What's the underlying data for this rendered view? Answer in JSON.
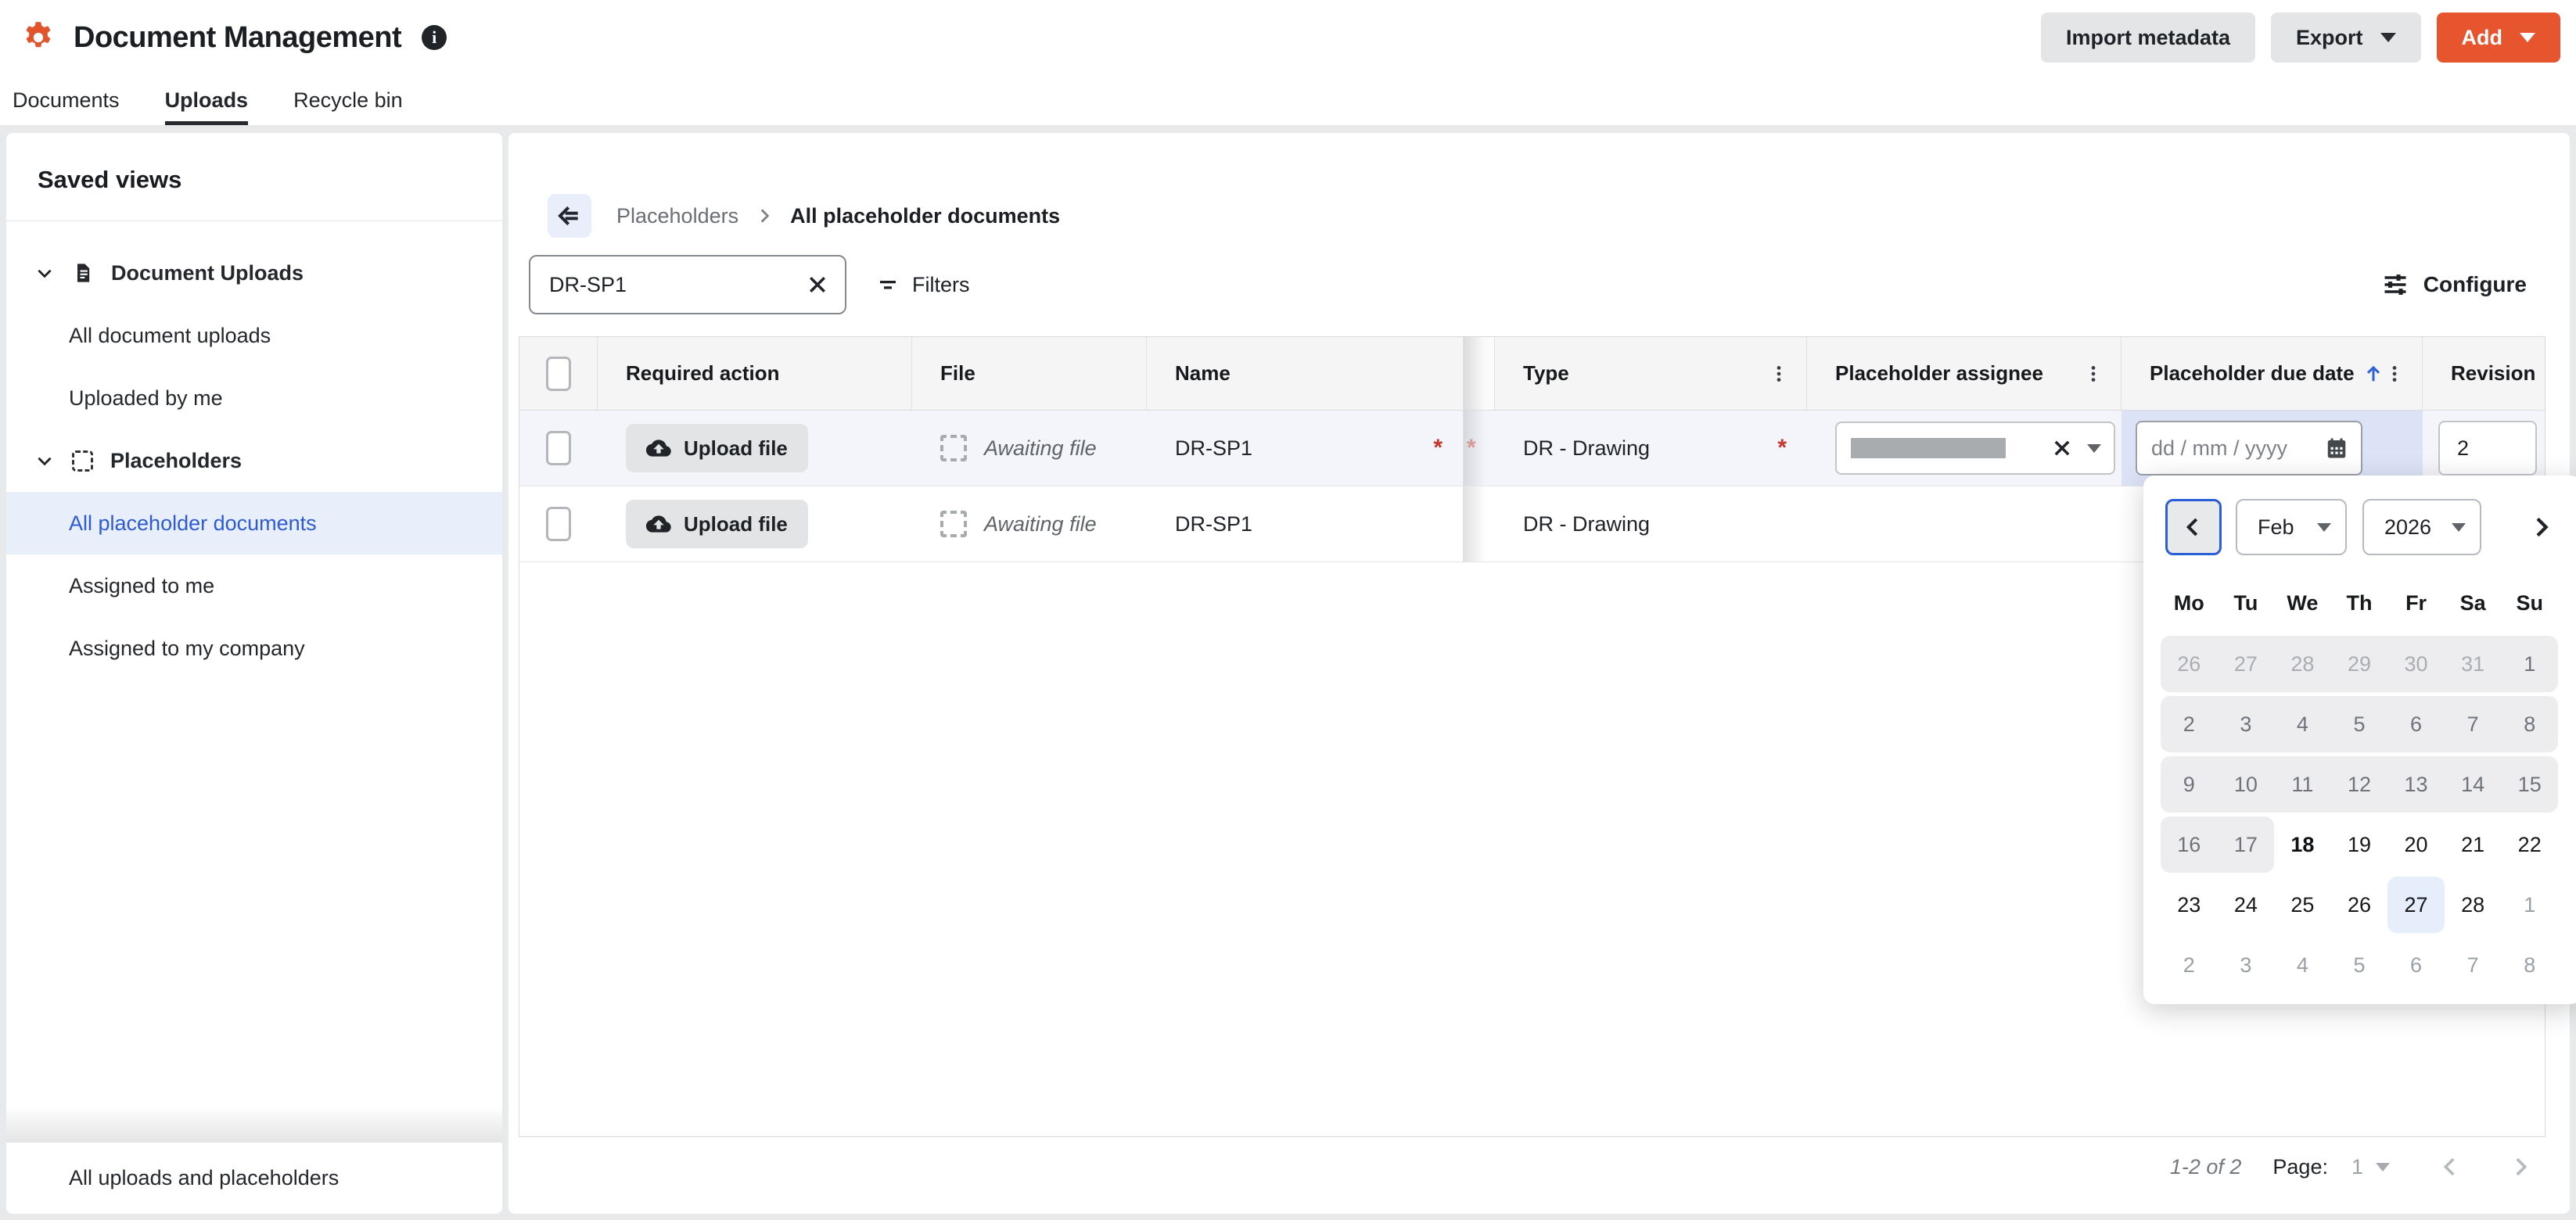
{
  "header": {
    "title": "Document Management",
    "buttons": {
      "import": "Import metadata",
      "export": "Export",
      "add": "Add"
    }
  },
  "tabs": [
    {
      "label": "Documents",
      "active": false
    },
    {
      "label": "Uploads",
      "active": true
    },
    {
      "label": "Recycle bin",
      "active": false
    }
  ],
  "sidebar": {
    "heading": "Saved views",
    "groups": [
      {
        "label": "Document Uploads",
        "icon": "document-icon",
        "children": [
          "All document uploads",
          "Uploaded by me"
        ]
      },
      {
        "label": "Placeholders",
        "icon": "placeholder-icon",
        "children": [
          "All placeholder documents",
          "Assigned to me",
          "Assigned to my company"
        ],
        "selected_child": "All placeholder documents"
      }
    ],
    "bottom_item": "All uploads and placeholders"
  },
  "breadcrumb": {
    "parent": "Placeholders",
    "current": "All placeholder documents"
  },
  "toolbar": {
    "search_value": "DR-SP1",
    "filters_label": "Filters",
    "configure_label": "Configure"
  },
  "table": {
    "columns": {
      "required_action": "Required action",
      "file": "File",
      "name": "Name",
      "type": "Type",
      "assignee": "Placeholder assignee",
      "due_date": "Placeholder due date",
      "revision": "Revision"
    },
    "sorted_column": "Placeholder due date",
    "sort_direction": "ascending",
    "rows": [
      {
        "action": "Upload file",
        "file_status": "Awaiting file",
        "name": "DR-SP1",
        "required_indicator": "*",
        "overflow_marker": "*",
        "type": "DR - Drawing",
        "type_required_indicator": "*",
        "assignee_redacted": true,
        "due_date_placeholder": "dd / mm / yyyy",
        "revision": "2",
        "highlighted": true
      },
      {
        "action": "Upload file",
        "file_status": "Awaiting file",
        "name": "DR-SP1",
        "type": "DR - Drawing",
        "highlighted": false
      }
    ]
  },
  "datepicker": {
    "month": "Feb",
    "year": "2026",
    "weekdays": [
      "Mo",
      "Tu",
      "We",
      "Th",
      "Fr",
      "Sa",
      "Su"
    ],
    "today": "18",
    "highlighted_day": "27",
    "weeks": [
      {
        "days": [
          {
            "d": "26",
            "s": "out",
            "band": true
          },
          {
            "d": "27",
            "s": "out",
            "band": true
          },
          {
            "d": "28",
            "s": "out",
            "band": true
          },
          {
            "d": "29",
            "s": "out",
            "band": true
          },
          {
            "d": "30",
            "s": "out",
            "band": true
          },
          {
            "d": "31",
            "s": "out",
            "band": true
          },
          {
            "d": "1",
            "s": "dim",
            "band": true
          }
        ]
      },
      {
        "days": [
          {
            "d": "2",
            "s": "dim",
            "band": true
          },
          {
            "d": "3",
            "s": "dim",
            "band": true
          },
          {
            "d": "4",
            "s": "dim",
            "band": true
          },
          {
            "d": "5",
            "s": "dim",
            "band": true
          },
          {
            "d": "6",
            "s": "dim",
            "band": true
          },
          {
            "d": "7",
            "s": "dim",
            "band": true
          },
          {
            "d": "8",
            "s": "dim",
            "band": true
          }
        ]
      },
      {
        "days": [
          {
            "d": "9",
            "s": "dim",
            "band": true
          },
          {
            "d": "10",
            "s": "dim",
            "band": true
          },
          {
            "d": "11",
            "s": "dim",
            "band": true
          },
          {
            "d": "12",
            "s": "dim",
            "band": true
          },
          {
            "d": "13",
            "s": "dim",
            "band": true
          },
          {
            "d": "14",
            "s": "dim",
            "band": true
          },
          {
            "d": "15",
            "s": "dim",
            "band": true
          }
        ]
      },
      {
        "days": [
          {
            "d": "16",
            "s": "dim",
            "band": true
          },
          {
            "d": "17",
            "s": "dim",
            "band": true
          },
          {
            "d": "18",
            "s": "today"
          },
          {
            "d": "19",
            "s": "normal"
          },
          {
            "d": "20",
            "s": "normal"
          },
          {
            "d": "21",
            "s": "normal"
          },
          {
            "d": "22",
            "s": "normal"
          }
        ]
      },
      {
        "days": [
          {
            "d": "23",
            "s": "normal"
          },
          {
            "d": "24",
            "s": "normal"
          },
          {
            "d": "25",
            "s": "normal"
          },
          {
            "d": "26",
            "s": "normal"
          },
          {
            "d": "27",
            "s": "sel"
          },
          {
            "d": "28",
            "s": "normal"
          },
          {
            "d": "1",
            "s": "next"
          }
        ]
      },
      {
        "days": [
          {
            "d": "2",
            "s": "next"
          },
          {
            "d": "3",
            "s": "next"
          },
          {
            "d": "4",
            "s": "next"
          },
          {
            "d": "5",
            "s": "next"
          },
          {
            "d": "6",
            "s": "next"
          },
          {
            "d": "7",
            "s": "next"
          },
          {
            "d": "8",
            "s": "next"
          }
        ]
      }
    ]
  },
  "pagination": {
    "range": "1-2 of 2",
    "page_label": "Page:",
    "page": "1"
  },
  "colors": {
    "accent_orange": "#e6552d",
    "accent_blue": "#2d5bd7",
    "required_red": "#c5352c",
    "selected_row_bg": "#f3f5fa",
    "due_cell_bg": "#dce3f7",
    "sidebar_selected_bg": "#e8eefa",
    "calendar_disabled_bg": "#ededef",
    "calendar_highlight_bg": "#e7eefb"
  }
}
